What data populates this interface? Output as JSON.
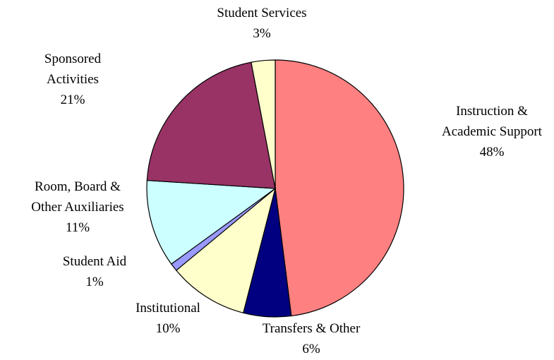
{
  "chart_data": {
    "type": "pie",
    "categories": [
      "Instruction & Academic Support",
      "Transfers & Other",
      "Institutional",
      "Student Aid",
      "Room, Board & Other Auxiliaries",
      "Sponsored Activities",
      "Student Services"
    ],
    "values": [
      48,
      6,
      10,
      1,
      11,
      21,
      3
    ],
    "value_labels": [
      "48%",
      "6%",
      "10%",
      "1%",
      "11%",
      "21%",
      "3%"
    ],
    "colors": [
      "#ff8080",
      "#000080",
      "#ffffcc",
      "#9999ff",
      "#ccffff",
      "#993366",
      "#ffffcc"
    ]
  }
}
